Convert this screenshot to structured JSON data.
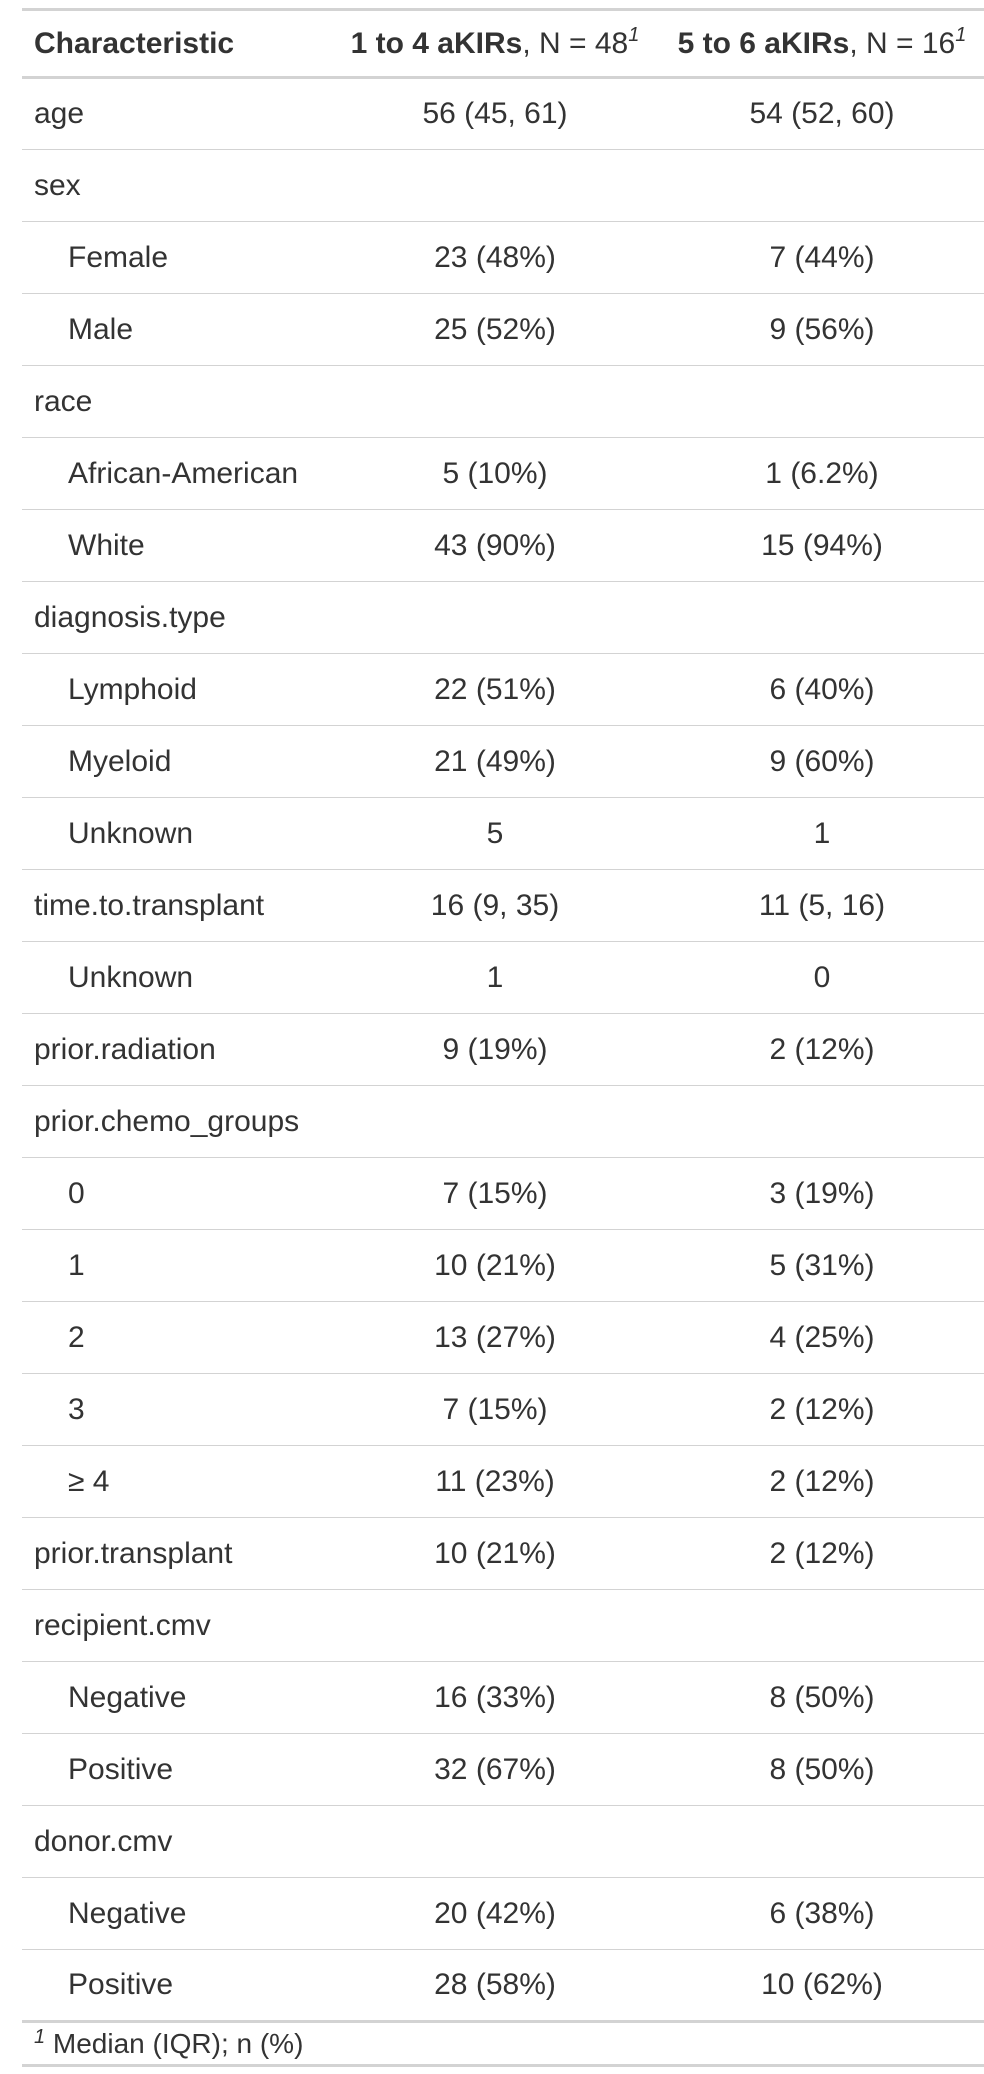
{
  "header": {
    "characteristic": "Characteristic",
    "group1_name": "1 to 4 aKIRs",
    "group1_n": ", N = 48",
    "group2_name": "5 to 6 aKIRs",
    "group2_n": ", N = 16",
    "footnote_mark": "1"
  },
  "rows": [
    {
      "label": "age",
      "indent": false,
      "g1": "56 (45, 61)",
      "g2": "54 (52, 60)"
    },
    {
      "label": "sex",
      "indent": false,
      "g1": "",
      "g2": ""
    },
    {
      "label": "Female",
      "indent": true,
      "g1": "23 (48%)",
      "g2": "7 (44%)"
    },
    {
      "label": "Male",
      "indent": true,
      "g1": "25 (52%)",
      "g2": "9 (56%)"
    },
    {
      "label": "race",
      "indent": false,
      "g1": "",
      "g2": ""
    },
    {
      "label": "African-American",
      "indent": true,
      "g1": "5 (10%)",
      "g2": "1 (6.2%)"
    },
    {
      "label": "White",
      "indent": true,
      "g1": "43 (90%)",
      "g2": "15 (94%)"
    },
    {
      "label": "diagnosis.type",
      "indent": false,
      "g1": "",
      "g2": ""
    },
    {
      "label": "Lymphoid",
      "indent": true,
      "g1": "22 (51%)",
      "g2": "6 (40%)"
    },
    {
      "label": "Myeloid",
      "indent": true,
      "g1": "21 (49%)",
      "g2": "9 (60%)"
    },
    {
      "label": "Unknown",
      "indent": true,
      "g1": "5",
      "g2": "1"
    },
    {
      "label": "time.to.transplant",
      "indent": false,
      "g1": "16 (9, 35)",
      "g2": "11 (5, 16)"
    },
    {
      "label": "Unknown",
      "indent": true,
      "g1": "1",
      "g2": "0"
    },
    {
      "label": "prior.radiation",
      "indent": false,
      "g1": "9 (19%)",
      "g2": "2 (12%)"
    },
    {
      "label": "prior.chemo_groups",
      "indent": false,
      "g1": "",
      "g2": ""
    },
    {
      "label": "0",
      "indent": true,
      "g1": "7 (15%)",
      "g2": "3 (19%)"
    },
    {
      "label": "1",
      "indent": true,
      "g1": "10 (21%)",
      "g2": "5 (31%)"
    },
    {
      "label": "2",
      "indent": true,
      "g1": "13 (27%)",
      "g2": "4 (25%)"
    },
    {
      "label": "3",
      "indent": true,
      "g1": "7 (15%)",
      "g2": "2 (12%)"
    },
    {
      "label": "≥ 4",
      "indent": true,
      "g1": "11 (23%)",
      "g2": "2 (12%)"
    },
    {
      "label": "prior.transplant",
      "indent": false,
      "g1": "10 (21%)",
      "g2": "2 (12%)"
    },
    {
      "label": "recipient.cmv",
      "indent": false,
      "g1": "",
      "g2": ""
    },
    {
      "label": "Negative",
      "indent": true,
      "g1": "16 (33%)",
      "g2": "8 (50%)"
    },
    {
      "label": "Positive",
      "indent": true,
      "g1": "32 (67%)",
      "g2": "8 (50%)"
    },
    {
      "label": "donor.cmv",
      "indent": false,
      "g1": "",
      "g2": ""
    },
    {
      "label": "Negative",
      "indent": true,
      "g1": "20 (42%)",
      "g2": "6 (38%)"
    },
    {
      "label": "Positive",
      "indent": true,
      "g1": "28 (58%)",
      "g2": "10 (62%)"
    }
  ],
  "footnote": {
    "mark": "1",
    "text": " Median (IQR); n (%)"
  },
  "colors": {
    "text": "#333333",
    "rule": "#d3d3d3",
    "background": "#ffffff"
  }
}
